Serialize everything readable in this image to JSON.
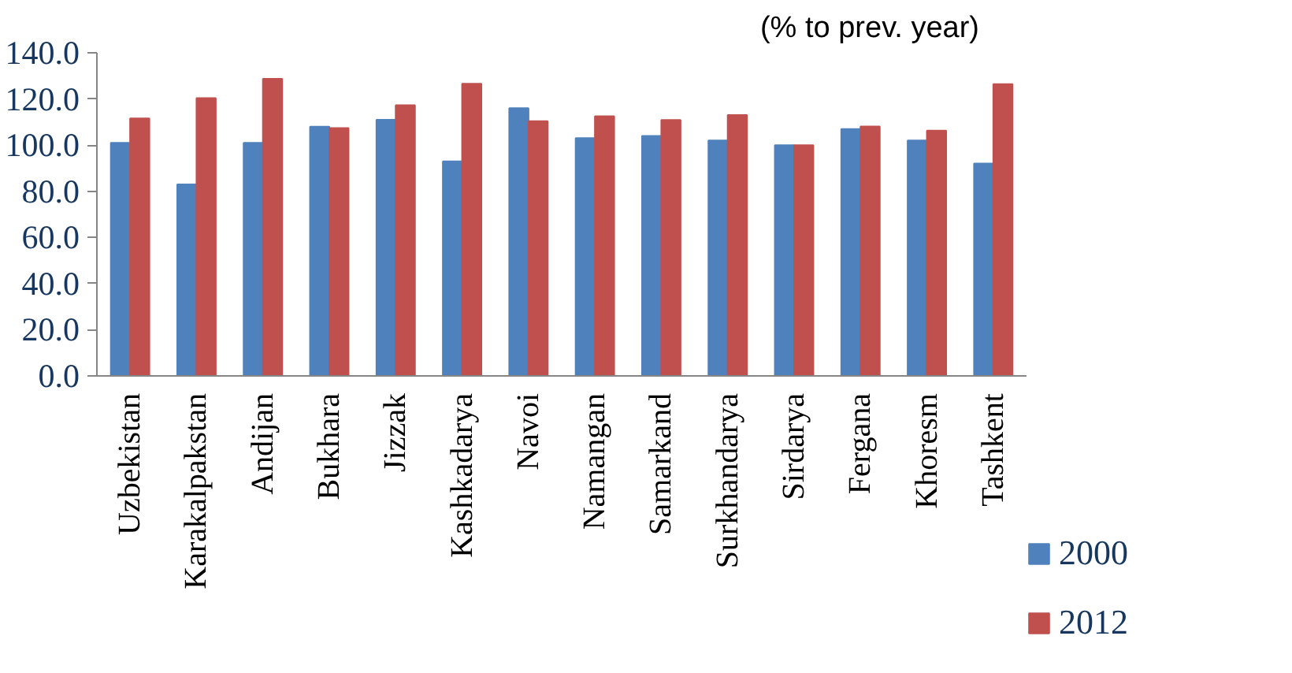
{
  "chart_data": {
    "type": "bar",
    "title": "(% to prev. year)",
    "categories": [
      "Uzbekistan",
      "Karakalpakstan",
      "Andijan",
      "Bukhara",
      "Jizzak",
      "Kashkadarya",
      "Navoi",
      "Namangan",
      "Samarkand",
      "Surkhandarya",
      "Sirdarya",
      "Fergana",
      "Khoresm",
      "Tashkent"
    ],
    "series": [
      {
        "name": "2000",
        "color": "#4f81bd",
        "values": [
          101,
          83,
          101,
          108,
          111,
          93,
          116,
          103,
          104,
          102,
          100,
          107,
          102,
          92
        ]
      },
      {
        "name": "2012",
        "color": "#c0504d",
        "values": [
          111.6,
          120.4,
          128.7,
          107.4,
          117.3,
          126.6,
          110.4,
          112.5,
          110.9,
          113,
          100,
          108.1,
          106.3,
          126.4
        ]
      }
    ],
    "ylim": [
      0,
      140
    ],
    "yticks": [
      {
        "value": 0,
        "label": "0.0"
      },
      {
        "value": 20,
        "label": "20.0"
      },
      {
        "value": 40,
        "label": "40.0"
      },
      {
        "value": 60,
        "label": "60.0"
      },
      {
        "value": 80,
        "label": "80.0"
      },
      {
        "value": 100,
        "label": "100.0"
      },
      {
        "value": 120,
        "label": "120.0"
      },
      {
        "value": 140,
        "label": "140.0"
      }
    ],
    "grid": false,
    "legend": "right"
  }
}
